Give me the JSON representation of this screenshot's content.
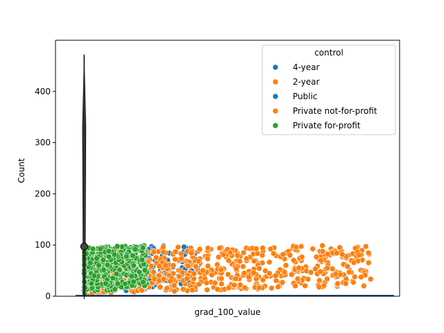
{
  "chart_data": {
    "type": "scatter",
    "xlabel": "grad_100_value",
    "ylabel": "Count",
    "ylim": [
      0,
      500
    ],
    "yticks": [
      0,
      100,
      200,
      300,
      400
    ],
    "x_tick_labels": [],
    "grid": false,
    "legend": {
      "title": "control",
      "placement": "top-right",
      "entries": [
        {
          "label": "4-year",
          "color": "#1f77b4"
        },
        {
          "label": "2-year",
          "color": "#ff7f0e"
        },
        {
          "label": "Public",
          "color": "#1f77b4"
        },
        {
          "label": "Private not-for-profit",
          "color": "#ff7f0e"
        },
        {
          "label": "Private for-profit",
          "color": "#2ca02c"
        }
      ]
    },
    "series": [
      {
        "name": "Public",
        "color": "#1f77b4",
        "x_range": [
          0,
          40
        ],
        "y_range": [
          5,
          100
        ],
        "count": 260
      },
      {
        "name": "Private not-for-profit",
        "color": "#ff7f0e",
        "x_range": [
          0,
          100
        ],
        "y_range": [
          5,
          100
        ],
        "count": 700
      },
      {
        "name": "Private for-profit",
        "color": "#2ca02c",
        "x_range": [
          0,
          22
        ],
        "y_range": [
          5,
          100
        ],
        "count": 420
      }
    ],
    "x_domain": [
      -10,
      110
    ],
    "violin": {
      "x": 0,
      "y_median": 97,
      "y_max": 472
    }
  },
  "colors": {
    "blue": "#1f77b4",
    "orange": "#ff7f0e",
    "green": "#2ca02c"
  }
}
